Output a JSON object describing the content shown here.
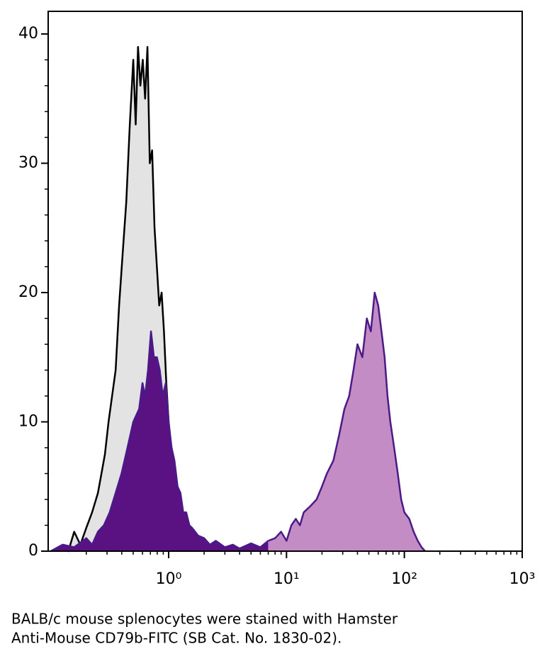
{
  "chart_data": {
    "type": "histogram-overlay",
    "xscale": "log",
    "xlim": [
      0.095,
      1000
    ],
    "ylim": [
      0,
      41.75
    ],
    "xticks": [
      {
        "value": 1,
        "label": "10⁰"
      },
      {
        "value": 10,
        "label": "10¹"
      },
      {
        "value": 100,
        "label": "10²"
      },
      {
        "value": 1000,
        "label": "10³"
      }
    ],
    "xminorticks": [
      0.2,
      0.3,
      0.4,
      0.5,
      0.6,
      0.7,
      0.8,
      0.9,
      2,
      3,
      4,
      5,
      6,
      7,
      8,
      9,
      20,
      30,
      40,
      50,
      60,
      70,
      80,
      90,
      200,
      300,
      400,
      500,
      600,
      700,
      800,
      900
    ],
    "yticks": [
      0,
      10,
      20,
      30,
      40
    ],
    "yminorticks": [
      2,
      4,
      6,
      8,
      12,
      14,
      16,
      18,
      22,
      24,
      26,
      28,
      32,
      34,
      36,
      38
    ],
    "series": [
      {
        "color": "#000000",
        "fill": "#e3e3e3",
        "x": [
          0.112,
          0.126,
          0.141,
          0.158,
          0.178,
          0.2,
          0.224,
          0.251,
          0.269,
          0.288,
          0.309,
          0.331,
          0.355,
          0.38,
          0.407,
          0.437,
          0.468,
          0.501,
          0.525,
          0.55,
          0.575,
          0.603,
          0.631,
          0.661,
          0.692,
          0.724,
          0.759,
          0.794,
          0.832,
          0.871,
          0.912,
          0.955,
          1,
          1.05,
          1.12,
          1.2,
          1.26,
          1.35,
          1.45,
          1.58,
          1.78,
          2,
          2.24,
          2.51
        ],
        "values": [
          0,
          0.3,
          0,
          1.5,
          0.5,
          1.8,
          3,
          4.5,
          6,
          7.5,
          10,
          12,
          14,
          19,
          23,
          27,
          33,
          38,
          33,
          39,
          36,
          38,
          35,
          39,
          30,
          31,
          25,
          22,
          19,
          20,
          17,
          13,
          10,
          8,
          6,
          4,
          3,
          2.5,
          1.5,
          1.5,
          0.8,
          0.5,
          0.2,
          0
        ]
      },
      {
        "color": "#4a1a8a",
        "fill": "#5a1282",
        "x": [
          0.1,
          0.126,
          0.158,
          0.2,
          0.224,
          0.251,
          0.282,
          0.316,
          0.355,
          0.398,
          0.447,
          0.501,
          0.562,
          0.6,
          0.631,
          0.668,
          0.708,
          0.75,
          0.794,
          0.841,
          0.891,
          0.944,
          1,
          1.06,
          1.12,
          1.19,
          1.26,
          1.33,
          1.41,
          1.5,
          1.58,
          1.78,
          2,
          2.24,
          2.51,
          3,
          3.5,
          4,
          5,
          6,
          7
        ],
        "values": [
          0,
          0.5,
          0.3,
          1,
          0.5,
          1.5,
          2,
          3,
          4.5,
          6,
          8,
          10,
          11,
          13,
          12,
          14,
          17,
          15,
          15,
          14,
          12,
          13,
          10,
          8,
          7,
          5,
          4.5,
          3,
          3,
          2,
          1.8,
          1.2,
          1,
          0.5,
          0.8,
          0.3,
          0.5,
          0.2,
          0.6,
          0.3,
          0.8
        ]
      },
      {
        "color": "#4b1a87",
        "fill": "#c38cc4",
        "x": [
          7,
          8,
          9,
          10,
          11,
          12,
          13,
          14,
          16,
          18,
          20,
          22,
          25,
          28,
          31,
          34,
          37,
          40,
          44,
          48,
          52,
          56,
          60,
          64,
          68,
          72,
          76,
          82,
          88,
          94,
          100,
          110,
          120,
          130,
          140,
          150
        ],
        "values": [
          0.8,
          1,
          1.5,
          0.8,
          2,
          2.5,
          2,
          3,
          3.5,
          4,
          5,
          6,
          7,
          9,
          11,
          12,
          14,
          16,
          15,
          18,
          17,
          20,
          19,
          17,
          15,
          12,
          10,
          8,
          6,
          4,
          3,
          2.5,
          1.5,
          0.8,
          0.3,
          0
        ]
      }
    ],
    "caption": [
      "BALB/c mouse splenocytes were stained with Hamster",
      "Anti-Mouse CD79b-FITC (SB Cat. No. 1830-02)."
    ]
  }
}
